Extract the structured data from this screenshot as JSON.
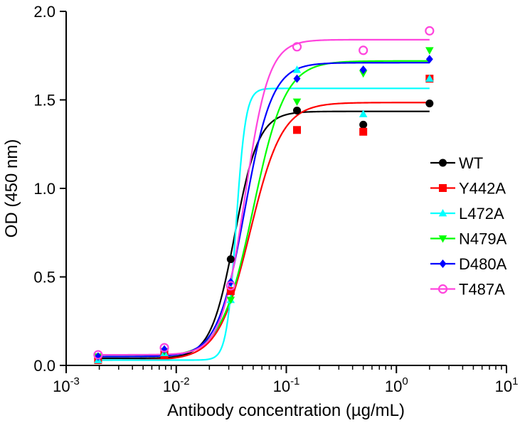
{
  "chart_data": {
    "type": "scatter",
    "title": "",
    "xlabel": "Antibody concentration (µg/mL)",
    "ylabel": "OD (450 nm)",
    "x_scale": "log",
    "xlim": [
      0.001,
      10
    ],
    "ylim": [
      0.0,
      2.0
    ],
    "x_ticks": [
      {
        "value": 0.001,
        "base": "10",
        "exp": "-3"
      },
      {
        "value": 0.01,
        "base": "10",
        "exp": "-2"
      },
      {
        "value": 0.1,
        "base": "10",
        "exp": "-1"
      },
      {
        "value": 1,
        "base": "10",
        "exp": "0"
      },
      {
        "value": 10,
        "base": "10",
        "exp": "1"
      }
    ],
    "y_ticks": [
      {
        "value": 0.0,
        "label": "0.0"
      },
      {
        "value": 0.5,
        "label": "0.5"
      },
      {
        "value": 1.0,
        "label": "1.0"
      },
      {
        "value": 1.5,
        "label": "1.5"
      },
      {
        "value": 2.0,
        "label": "2.0"
      }
    ],
    "grid": false,
    "legend_position": "right",
    "x": [
      0.00195,
      0.0078,
      0.03125,
      0.125,
      0.5,
      2.0
    ],
    "series": [
      {
        "name": "WT",
        "color": "#000000",
        "marker": "circle-filled",
        "values": [
          0.04,
          0.08,
          0.6,
          1.44,
          1.36,
          1.48
        ],
        "fit": {
          "bottom": 0.04,
          "top": 1.435,
          "ec50": 0.034,
          "hill": 4.0
        }
      },
      {
        "name": "Y442A",
        "color": "#ff0000",
        "marker": "square",
        "values": [
          0.03,
          0.06,
          0.42,
          1.33,
          1.32,
          1.62
        ],
        "fit": {
          "bottom": 0.03,
          "top": 1.485,
          "ec50": 0.047,
          "hill": 3.0
        }
      },
      {
        "name": "L472A",
        "color": "#00ffff",
        "marker": "triangle-up",
        "values": [
          0.03,
          0.07,
          0.37,
          1.67,
          1.42,
          1.62
        ],
        "fit": {
          "bottom": 0.03,
          "top": 1.565,
          "ec50": 0.035,
          "hill": 10.0
        }
      },
      {
        "name": "N479A",
        "color": "#00ff00",
        "marker": "triangle-down",
        "values": [
          0.05,
          0.08,
          0.37,
          1.49,
          1.65,
          1.78
        ],
        "fit": {
          "bottom": 0.05,
          "top": 1.72,
          "ec50": 0.05,
          "hill": 3.0
        }
      },
      {
        "name": "D480A",
        "color": "#0000ff",
        "marker": "diamond",
        "values": [
          0.05,
          0.09,
          0.47,
          1.62,
          1.67,
          1.73
        ],
        "fit": {
          "bottom": 0.05,
          "top": 1.71,
          "ec50": 0.042,
          "hill": 3.5
        }
      },
      {
        "name": "T487A",
        "color": "#ff44dd",
        "marker": "circle-open",
        "values": [
          0.06,
          0.1,
          0.45,
          1.8,
          1.78,
          1.89
        ],
        "fit": {
          "bottom": 0.06,
          "top": 1.84,
          "ec50": 0.042,
          "hill": 4.0
        }
      }
    ]
  }
}
